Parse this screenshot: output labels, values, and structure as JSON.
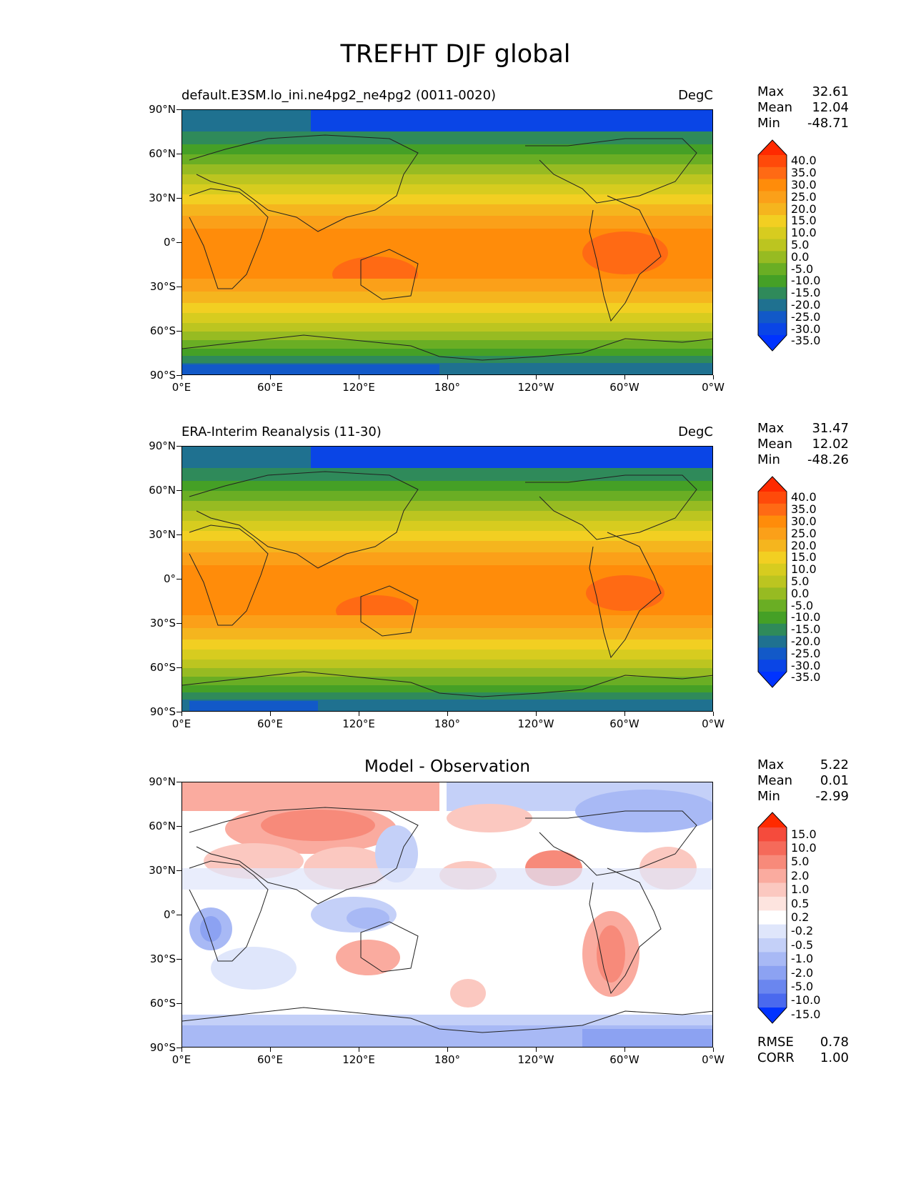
{
  "title": "TREFHT DJF global",
  "axes": {
    "lat_ticks": [
      "90°N",
      "60°N",
      "30°N",
      "0°",
      "30°S",
      "60°S",
      "90°S"
    ],
    "lon_ticks": [
      "0°E",
      "60°E",
      "120°E",
      "180°",
      "120°W",
      "60°W",
      "0°W"
    ]
  },
  "panels": [
    {
      "id": "test",
      "left_title": "default.E3SM.lo_ini.ne4pg2_ne4pg2 (0011-0020)",
      "right_title": "DegC",
      "stats": [
        {
          "label": "Max",
          "value": "32.61"
        },
        {
          "label": "Mean",
          "value": "12.04"
        },
        {
          "label": "Min",
          "value": "-48.71"
        }
      ],
      "levels": [
        "40.0",
        "35.0",
        "30.0",
        "25.0",
        "20.0",
        "15.0",
        "10.0",
        "5.0",
        "0.0",
        "-5.0",
        "-10.0",
        "-15.0",
        "-20.0",
        "-25.0",
        "-30.0",
        "-35.0"
      ],
      "colors": [
        "#ff2a00",
        "#ff4a0a",
        "#ff6a14",
        "#ff8c0a",
        "#fba019",
        "#f5b51e",
        "#f2cf22",
        "#d7cc1f",
        "#bcc520",
        "#97bb22",
        "#6aae24",
        "#45a026",
        "#2f8a5a",
        "#1f7190",
        "#1259c8",
        "#0a45e6",
        "#0033ff"
      ]
    },
    {
      "id": "reference",
      "left_title": "ERA-Interim Reanalysis (11-30)",
      "right_title": "DegC",
      "stats": [
        {
          "label": "Max",
          "value": "31.47"
        },
        {
          "label": "Mean",
          "value": "12.02"
        },
        {
          "label": "Min",
          "value": "-48.26"
        }
      ],
      "levels": [
        "40.0",
        "35.0",
        "30.0",
        "25.0",
        "20.0",
        "15.0",
        "10.0",
        "5.0",
        "0.0",
        "-5.0",
        "-10.0",
        "-15.0",
        "-20.0",
        "-25.0",
        "-30.0",
        "-35.0"
      ],
      "colors": [
        "#ff2a00",
        "#ff4a0a",
        "#ff6a14",
        "#ff8c0a",
        "#fba019",
        "#f5b51e",
        "#f2cf22",
        "#d7cc1f",
        "#bcc520",
        "#97bb22",
        "#6aae24",
        "#45a026",
        "#2f8a5a",
        "#1f7190",
        "#1259c8",
        "#0a45e6",
        "#0033ff"
      ]
    },
    {
      "id": "difference",
      "center_title": "Model - Observation",
      "stats": [
        {
          "label": "Max",
          "value": "5.22"
        },
        {
          "label": "Mean",
          "value": "0.01"
        },
        {
          "label": "Min",
          "value": "-2.99"
        }
      ],
      "metrics": [
        {
          "label": "RMSE",
          "value": "0.78"
        },
        {
          "label": "CORR",
          "value": "1.00"
        }
      ],
      "levels": [
        "15.0",
        "10.0",
        "5.0",
        "2.0",
        "1.0",
        "0.5",
        "0.2",
        "-0.2",
        "-0.5",
        "-1.0",
        "-2.0",
        "-5.0",
        "-10.0",
        "-15.0"
      ],
      "colors": [
        "#ff2a00",
        "#f54b3c",
        "#f56a5a",
        "#f78a7a",
        "#faab9f",
        "#fbc8c0",
        "#fde4df",
        "#ffffff",
        "#dfe6fb",
        "#c4d0f8",
        "#a8b9f5",
        "#8ca2f2",
        "#6a86ef",
        "#4a69ee",
        "#0033ff"
      ]
    }
  ]
}
